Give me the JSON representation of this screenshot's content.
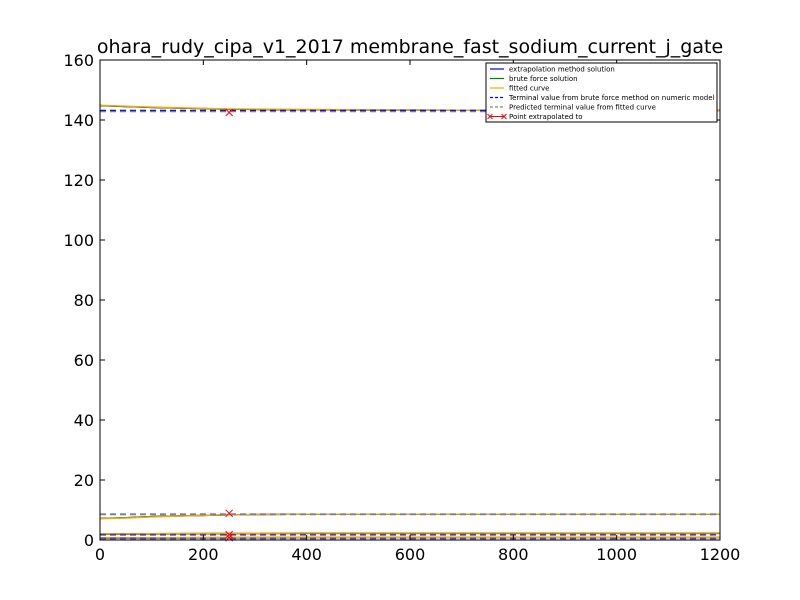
{
  "chart_data": {
    "type": "line",
    "title": "ohara_rudy_cipa_v1_2017 membrane_fast_sodium_current_j_gate",
    "xlabel": "",
    "ylabel": "",
    "xlim": [
      0,
      1200
    ],
    "ylim": [
      0,
      160
    ],
    "x_ticks": [
      0,
      200,
      400,
      600,
      800,
      1000,
      1200
    ],
    "y_ticks": [
      0,
      20,
      40,
      60,
      80,
      100,
      120,
      140,
      160
    ],
    "grid": false,
    "legend_position": "top-right",
    "legend": [
      {
        "label": "extrapolation method solution",
        "style": "solid",
        "color": "#0000ff"
      },
      {
        "label": "brute force solution",
        "style": "solid",
        "color": "#008000"
      },
      {
        "label": "fitted curve",
        "style": "solid",
        "color": "#ffa500"
      },
      {
        "label": "Terminal value from brute force method on numeric model",
        "style": "dashed",
        "color": "#0000ff"
      },
      {
        "label": "Predicted terminal value from fitted curve",
        "style": "dashed",
        "color": "#808080"
      },
      {
        "label": "Point extrapolated to",
        "style": "marker-x",
        "color": "#ff0000"
      }
    ],
    "series": [
      {
        "role": "extrapolation",
        "color": "#0000ff",
        "x": [
          0,
          50,
          100,
          200,
          250,
          400,
          600,
          800,
          1000,
          1200
        ],
        "y": [
          144.8,
          144.5,
          144.2,
          143.8,
          143.6,
          143.4,
          143.3,
          143.2,
          143.2,
          143.2
        ]
      },
      {
        "role": "brute",
        "color": "#008000",
        "x": [
          0,
          50,
          100,
          200,
          250,
          400,
          600,
          800,
          1000,
          1200
        ],
        "y": [
          144.8,
          144.5,
          144.2,
          143.8,
          143.6,
          143.4,
          143.3,
          143.2,
          143.2,
          143.2
        ]
      },
      {
        "role": "fitted",
        "color": "#ffa500",
        "x": [
          0,
          50,
          100,
          200,
          250,
          400,
          600,
          800,
          1000,
          1200
        ],
        "y": [
          144.9,
          144.6,
          144.3,
          143.9,
          143.7,
          143.5,
          143.3,
          143.2,
          143.2,
          143.2
        ]
      },
      {
        "role": "terminal",
        "color": "#0000ff",
        "dashed": true,
        "x": [
          0,
          1200
        ],
        "y": [
          143.2,
          143.2
        ]
      },
      {
        "role": "predicted",
        "color": "#808080",
        "dashed": true,
        "x": [
          0,
          1200
        ],
        "y": [
          142.8,
          142.8
        ]
      },
      {
        "role": "extrapolation",
        "color": "#0000ff",
        "x": [
          0,
          50,
          100,
          200,
          250,
          400,
          600,
          800,
          1000,
          1200
        ],
        "y": [
          7.2,
          7.4,
          7.8,
          8.2,
          8.4,
          8.6,
          8.6,
          8.6,
          8.6,
          8.6
        ]
      },
      {
        "role": "brute",
        "color": "#008000",
        "x": [
          0,
          50,
          100,
          200,
          250,
          400,
          600,
          800,
          1000,
          1200
        ],
        "y": [
          7.2,
          7.4,
          7.8,
          8.2,
          8.4,
          8.6,
          8.6,
          8.6,
          8.6,
          8.6
        ]
      },
      {
        "role": "fitted",
        "color": "#ffa500",
        "x": [
          0,
          50,
          100,
          200,
          250,
          400,
          600,
          800,
          1000,
          1200
        ],
        "y": [
          7.1,
          7.3,
          7.7,
          8.2,
          8.4,
          8.6,
          8.6,
          8.6,
          8.6,
          8.6
        ]
      },
      {
        "role": "terminal",
        "color": "#0000ff",
        "dashed": true,
        "x": [
          0,
          1200
        ],
        "y": [
          8.6,
          8.6
        ]
      },
      {
        "role": "predicted",
        "color": "#808080",
        "dashed": true,
        "x": [
          0,
          1200
        ],
        "y": [
          8.5,
          8.5
        ]
      },
      {
        "role": "extrapolation",
        "color": "#0000ff",
        "x": [
          0,
          200,
          400,
          600,
          800,
          1000,
          1200
        ],
        "y": [
          1.9,
          2.1,
          2.2,
          2.2,
          2.2,
          2.2,
          2.2
        ]
      },
      {
        "role": "brute",
        "color": "#008000",
        "x": [
          0,
          200,
          400,
          600,
          800,
          1000,
          1200
        ],
        "y": [
          2.0,
          2.2,
          2.3,
          2.3,
          2.3,
          2.3,
          2.3
        ]
      },
      {
        "role": "fitted",
        "color": "#ffa500",
        "x": [
          0,
          200,
          400,
          600,
          800,
          1000,
          1200
        ],
        "y": [
          2.0,
          2.2,
          2.3,
          2.3,
          2.3,
          2.3,
          2.3
        ]
      },
      {
        "role": "terminal",
        "color": "#0000ff",
        "dashed": true,
        "x": [
          0,
          1200
        ],
        "y": [
          1.8,
          1.8
        ]
      },
      {
        "role": "predicted",
        "color": "#808080",
        "dashed": true,
        "x": [
          0,
          1200
        ],
        "y": [
          1.6,
          1.6
        ]
      },
      {
        "role": "extrapolation",
        "color": "#0000ff",
        "x": [
          0,
          200,
          400,
          600,
          800,
          1000,
          1200
        ],
        "y": [
          0.6,
          0.7,
          0.8,
          0.8,
          0.8,
          0.8,
          0.8
        ]
      },
      {
        "role": "brute",
        "color": "#008000",
        "x": [
          0,
          200,
          400,
          600,
          800,
          1000,
          1200
        ],
        "y": [
          0.7,
          0.8,
          0.9,
          0.9,
          0.9,
          0.9,
          0.9
        ]
      },
      {
        "role": "fitted",
        "color": "#ffa500",
        "x": [
          0,
          200,
          400,
          600,
          800,
          1000,
          1200
        ],
        "y": [
          0.7,
          0.8,
          0.9,
          0.9,
          0.9,
          0.9,
          0.9
        ]
      },
      {
        "role": "terminal",
        "color": "#0000ff",
        "dashed": true,
        "x": [
          0,
          1200
        ],
        "y": [
          0.5,
          0.5
        ]
      },
      {
        "role": "predicted",
        "color": "#808080",
        "dashed": true,
        "x": [
          0,
          1200
        ],
        "y": [
          0.3,
          0.3
        ]
      }
    ],
    "extrapolated_points": [
      {
        "x": 250,
        "y": 142.5
      },
      {
        "x": 250,
        "y": 8.9
      },
      {
        "x": 250,
        "y": 1.8
      },
      {
        "x": 250,
        "y": 0.8
      }
    ]
  }
}
